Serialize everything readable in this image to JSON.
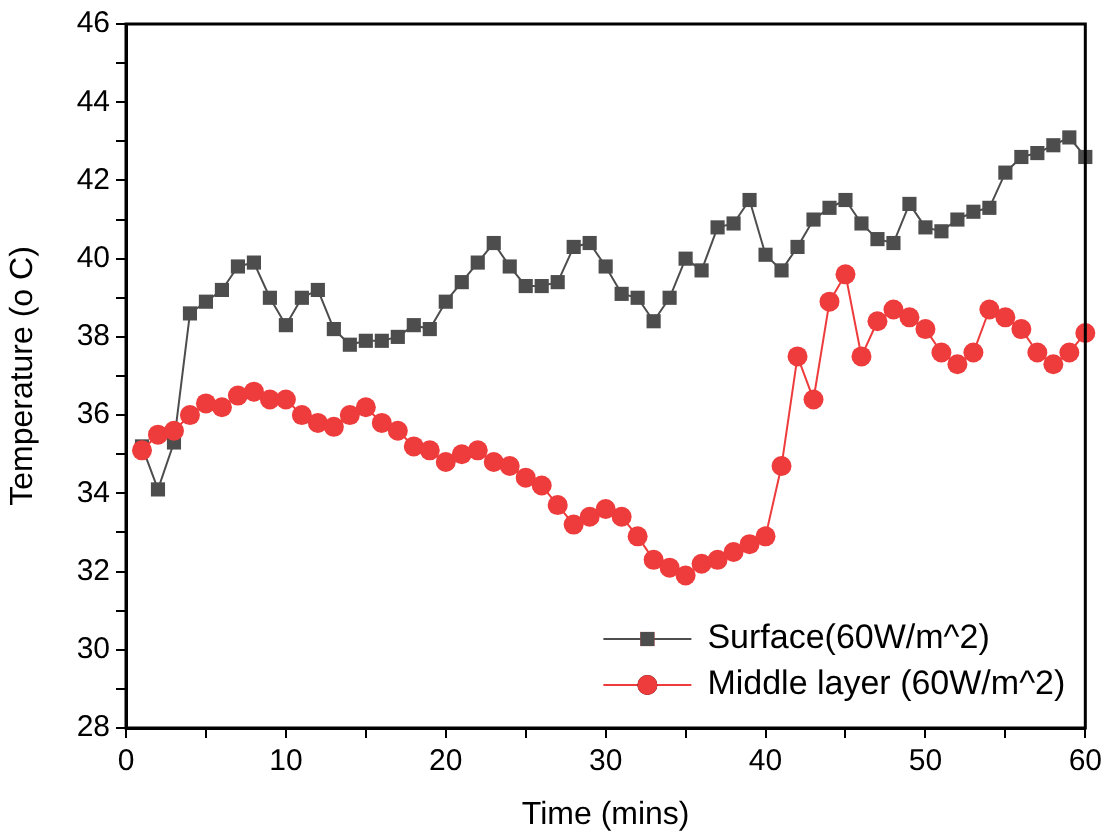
{
  "chart_data": {
    "type": "line",
    "xlabel": "Time (mins)",
    "ylabel": "Temperature (o C)",
    "x": [
      1,
      2,
      3,
      4,
      5,
      6,
      7,
      8,
      9,
      10,
      11,
      12,
      13,
      14,
      15,
      16,
      17,
      18,
      19,
      20,
      21,
      22,
      23,
      24,
      25,
      26,
      27,
      28,
      29,
      30,
      31,
      32,
      33,
      34,
      35,
      36,
      37,
      38,
      39,
      40,
      41,
      42,
      43,
      44,
      45,
      46,
      47,
      48,
      49,
      50,
      51,
      52,
      53,
      54,
      55,
      56,
      57,
      58,
      59,
      60
    ],
    "series": [
      {
        "name": "Surface(60W/m^2)",
        "color": "#4d4d4d",
        "marker": "square",
        "values": [
          35.2,
          34.1,
          35.3,
          38.6,
          38.9,
          39.2,
          39.8,
          39.9,
          39.0,
          38.3,
          39.0,
          39.2,
          38.2,
          37.8,
          37.9,
          37.9,
          38.0,
          38.3,
          38.2,
          38.9,
          39.4,
          39.9,
          40.4,
          39.8,
          39.3,
          39.3,
          39.4,
          40.3,
          40.4,
          39.8,
          39.1,
          39.0,
          38.4,
          39.0,
          40.0,
          39.7,
          40.8,
          40.9,
          41.5,
          40.1,
          39.7,
          40.3,
          41.0,
          41.3,
          41.5,
          40.9,
          40.5,
          40.4,
          41.4,
          40.8,
          40.7,
          41.0,
          41.2,
          41.3,
          42.2,
          42.6,
          42.7,
          42.9,
          43.1,
          42.6
        ]
      },
      {
        "name": "Middle layer (60W/m^2)",
        "color": "#ee3b3b",
        "marker": "circle",
        "values": [
          35.1,
          35.5,
          35.6,
          36.0,
          36.3,
          36.2,
          36.5,
          36.6,
          36.4,
          36.4,
          36.0,
          35.8,
          35.7,
          36.0,
          36.2,
          35.8,
          35.6,
          35.2,
          35.1,
          34.8,
          35.0,
          35.1,
          34.8,
          34.7,
          34.4,
          34.2,
          33.7,
          33.2,
          33.4,
          33.6,
          33.4,
          32.9,
          32.3,
          32.1,
          31.9,
          32.2,
          32.3,
          32.5,
          32.7,
          32.9,
          34.7,
          37.5,
          36.4,
          38.9,
          39.6,
          37.5,
          38.4,
          38.7,
          38.5,
          38.2,
          37.6,
          37.3,
          37.6,
          38.7,
          38.5,
          38.2,
          37.6,
          37.3,
          37.6,
          38.1
        ]
      }
    ],
    "xlim": [
      0,
      60
    ],
    "xticks": [
      0,
      {
        "value": 5,
        "label": null
      },
      10,
      {
        "value": 15,
        "label": null
      },
      20,
      {
        "value": 25,
        "label": null
      },
      30,
      {
        "value": 35,
        "label": null
      },
      40,
      {
        "value": 45,
        "label": null
      },
      50,
      {
        "value": 55,
        "label": null
      },
      60
    ],
    "ylim": [
      28,
      46
    ],
    "yticks": [
      28,
      {
        "value": 29,
        "label": null
      },
      30,
      {
        "value": 31,
        "label": null
      },
      32,
      {
        "value": 33,
        "label": null
      },
      34,
      {
        "value": 35,
        "label": null
      },
      36,
      {
        "value": 37,
        "label": null
      },
      38,
      {
        "value": 39,
        "label": null
      },
      40,
      {
        "value": 41,
        "label": null
      },
      42,
      {
        "value": 43,
        "label": null
      },
      44,
      {
        "value": 45,
        "label": null
      },
      46
    ],
    "grid": false,
    "legend": "bottom right",
    "line_style": "solid"
  }
}
